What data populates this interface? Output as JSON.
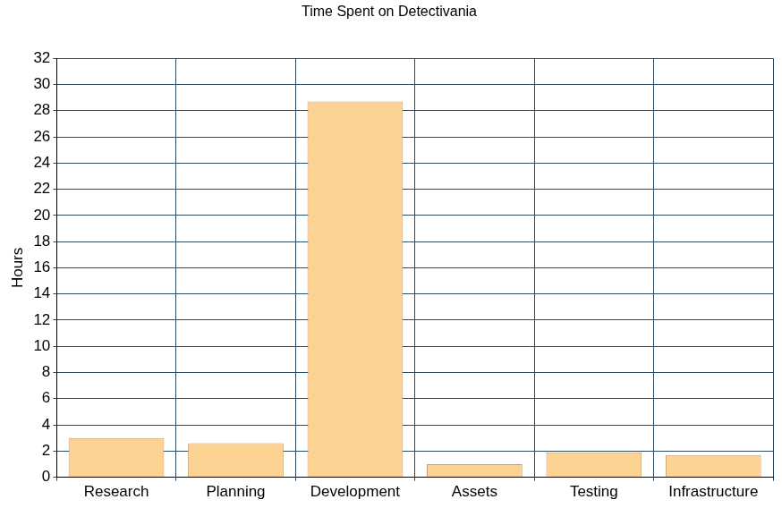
{
  "chart_data": {
    "type": "bar",
    "title": "Time Spent on Detectivania",
    "y_label": "Hours",
    "categories": [
      "Research",
      "Planning",
      "Development",
      "Assets",
      "Testing",
      "Infrastructure"
    ],
    "values": [
      3.0,
      2.6,
      28.7,
      1.0,
      1.9,
      1.7
    ],
    "color": "#fdd393",
    "ylim": [
      0,
      32
    ],
    "yticks": [
      0,
      2,
      4,
      6,
      8,
      10,
      12,
      14,
      16,
      18,
      20,
      22,
      24,
      26,
      28,
      30,
      32
    ],
    "grid": true
  }
}
